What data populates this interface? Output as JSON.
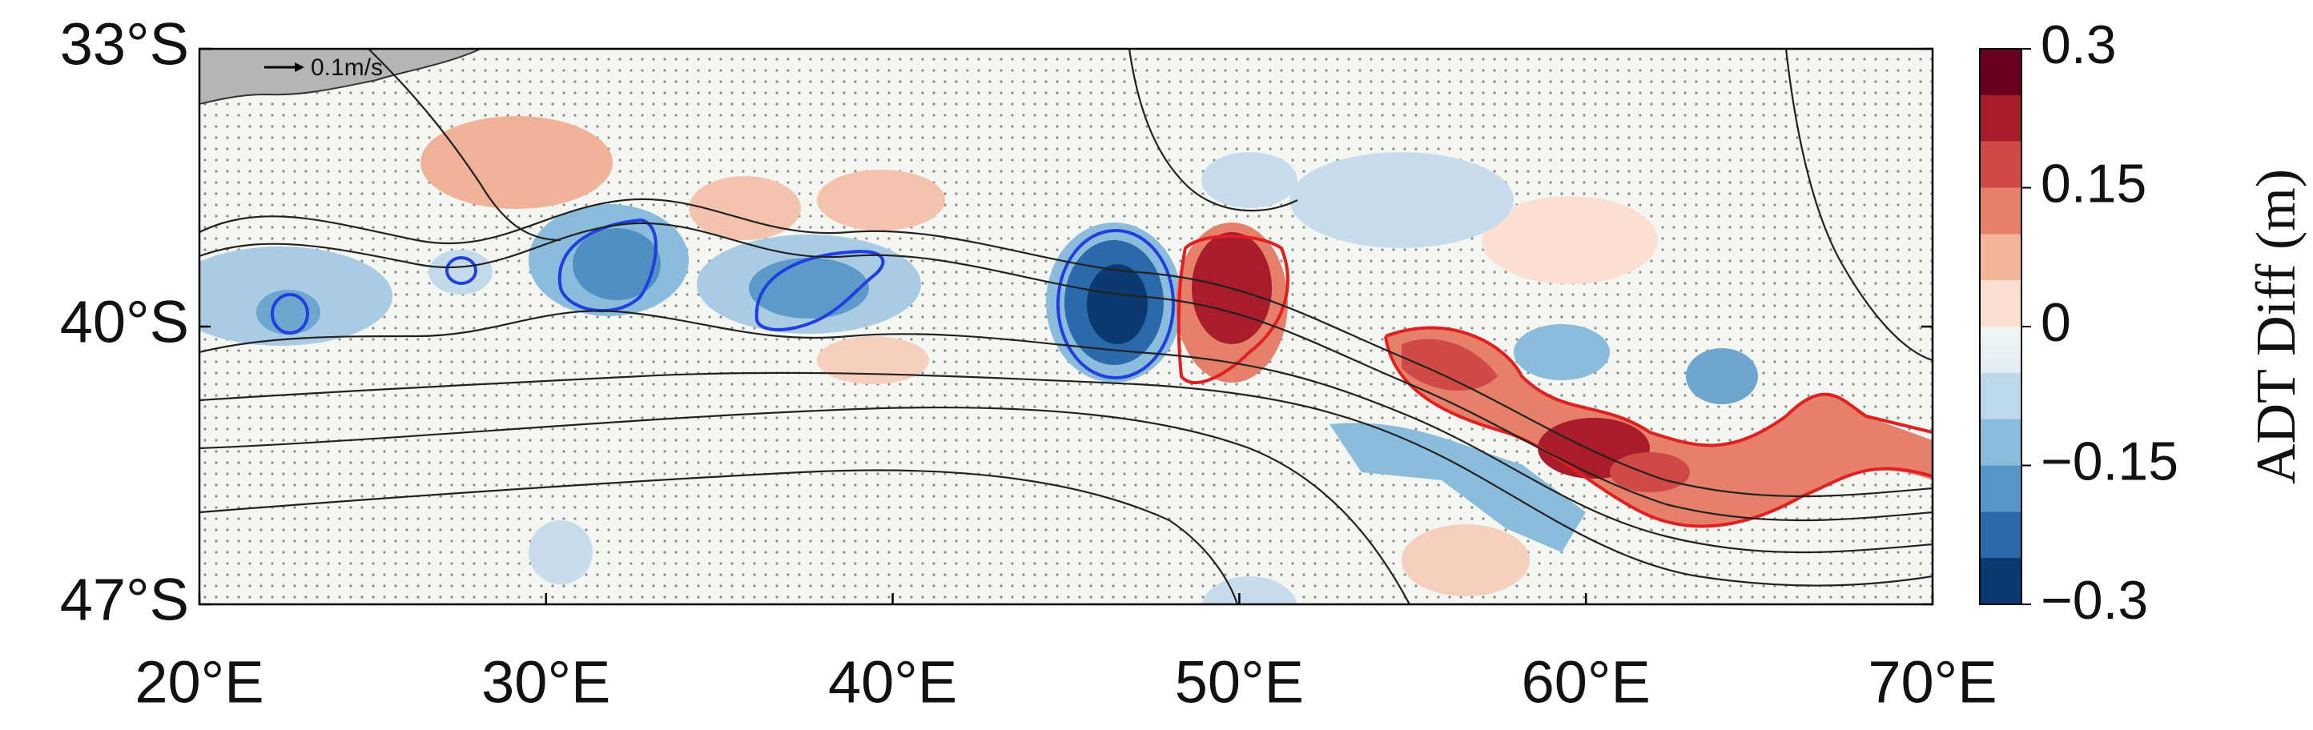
{
  "map": {
    "xlim": [
      20,
      70
    ],
    "ylim": [
      -47,
      -33
    ],
    "xticks": [
      {
        "value": 20,
        "label": "20°E"
      },
      {
        "value": 30,
        "label": "30°E"
      },
      {
        "value": 40,
        "label": "40°E"
      },
      {
        "value": 50,
        "label": "50°E"
      },
      {
        "value": 60,
        "label": "60°E"
      },
      {
        "value": 70,
        "label": "70°E"
      }
    ],
    "yticks": [
      {
        "value": -33,
        "label": "33°S"
      },
      {
        "value": -40,
        "label": "40°S"
      },
      {
        "value": -47,
        "label": "47°S"
      }
    ],
    "scale_arrow_label": "0.1m/s",
    "colorbar": {
      "label": "ADT Diff (m)",
      "lim": [
        -0.3,
        0.3
      ],
      "ticks": [
        0.3,
        0.15,
        0,
        {
          "value": -0.15,
          "label": "−0.15"
        },
        {
          "value": -0.3,
          "label": "−0.3"
        }
      ]
    }
  }
}
